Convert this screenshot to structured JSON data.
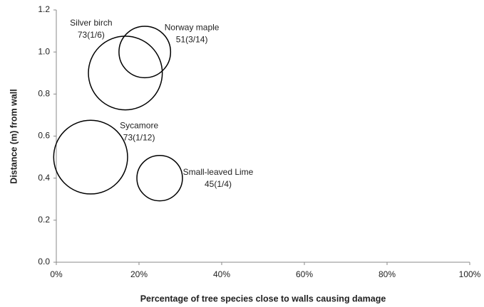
{
  "chart_data": {
    "type": "bubble",
    "xlabel": "Percentage of tree species close to walls causing damage",
    "ylabel": "Distance (m) from wall",
    "names": [
      "Silver birch",
      "Norway maple",
      "Sycamore",
      "Small-leaved Lime"
    ],
    "x": [
      16.7,
      21.4,
      8.3,
      25
    ],
    "values": [
      0.9,
      1.0,
      0.5,
      0.4
    ],
    "sizes": [
      73,
      51,
      73,
      45
    ],
    "value_labels": [
      "73(1/6)",
      "51(3/14)",
      "73(1/12)",
      "45(1/4)"
    ],
    "color": "#000000",
    "xlim": [
      0,
      100
    ],
    "xticks": [
      {
        "value": 0,
        "label": "0%"
      },
      {
        "value": 20,
        "label": "20%"
      },
      {
        "value": 40,
        "label": "40%"
      },
      {
        "value": 60,
        "label": "60%"
      },
      {
        "value": 80,
        "label": "80%"
      },
      {
        "value": 100,
        "label": "100%"
      }
    ],
    "ylim": [
      0,
      1.2
    ],
    "yticks": [
      {
        "value": 0,
        "label": "0.0"
      },
      0.2,
      0.4,
      0.6,
      0.8,
      {
        "value": 1,
        "label": "1.0"
      },
      1.2
    ],
    "grid": false
  }
}
